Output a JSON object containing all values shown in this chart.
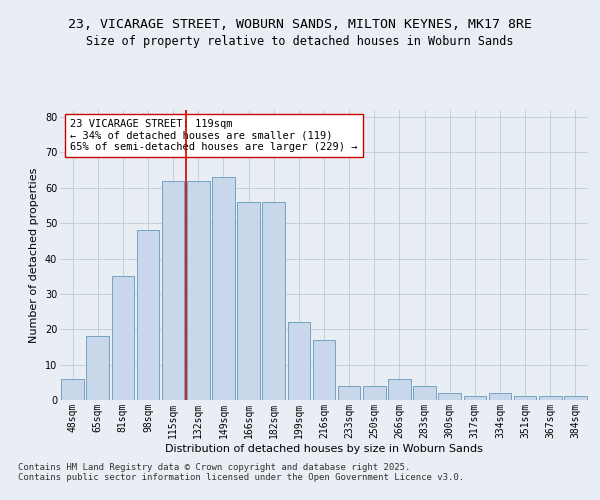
{
  "title_line1": "23, VICARAGE STREET, WOBURN SANDS, MILTON KEYNES, MK17 8RE",
  "title_line2": "Size of property relative to detached houses in Woburn Sands",
  "xlabel": "Distribution of detached houses by size in Woburn Sands",
  "ylabel": "Number of detached properties",
  "bar_labels": [
    "48sqm",
    "65sqm",
    "81sqm",
    "98sqm",
    "115sqm",
    "132sqm",
    "149sqm",
    "166sqm",
    "182sqm",
    "199sqm",
    "216sqm",
    "233sqm",
    "250sqm",
    "266sqm",
    "283sqm",
    "300sqm",
    "317sqm",
    "334sqm",
    "351sqm",
    "367sqm",
    "384sqm"
  ],
  "bar_values": [
    6,
    18,
    35,
    48,
    62,
    62,
    63,
    56,
    56,
    22,
    17,
    4,
    4,
    6,
    4,
    2,
    1,
    2,
    1,
    1,
    1
  ],
  "bar_color": "#c8d8ea",
  "bar_edge_color": "#6699bb",
  "vline_x": 4.5,
  "vline_color": "#cc0000",
  "annotation_text": "23 VICARAGE STREET: 119sqm\n← 34% of detached houses are smaller (119)\n65% of semi-detached houses are larger (229) →",
  "annotation_box_color": "#ffffff",
  "annotation_box_edge": "#cc0000",
  "ylim": [
    0,
    82
  ],
  "yticks": [
    0,
    10,
    20,
    30,
    40,
    50,
    60,
    70,
    80
  ],
  "grid_color": "#bbccdd",
  "background_color": "#e8eef4",
  "footer_text": "Contains HM Land Registry data © Crown copyright and database right 2025.\nContains public sector information licensed under the Open Government Licence v3.0.",
  "title_fontsize": 9.5,
  "subtitle_fontsize": 8.5,
  "axis_label_fontsize": 8,
  "tick_fontsize": 7,
  "annotation_fontsize": 7.5,
  "footer_fontsize": 6.5
}
